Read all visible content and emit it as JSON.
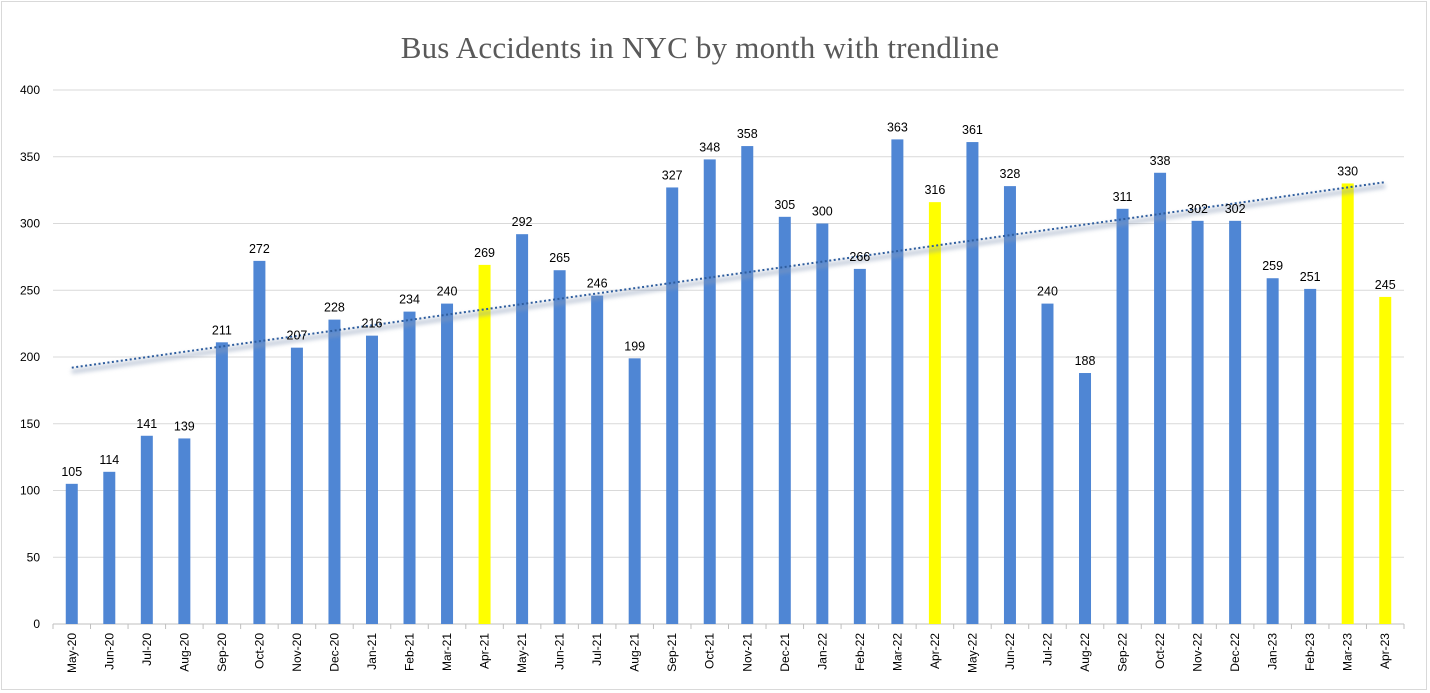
{
  "chart_data": {
    "type": "bar",
    "title": "Bus Accidents in NYC by month with trendline",
    "xlabel": "",
    "ylabel": "",
    "ylim": [
      0,
      400
    ],
    "yticks": [
      0,
      50,
      100,
      150,
      200,
      250,
      300,
      350,
      400
    ],
    "grid": true,
    "legend": "none",
    "categories": [
      "May-20",
      "Jun-20",
      "Jul-20",
      "Aug-20",
      "Sep-20",
      "Oct-20",
      "Nov-20",
      "Dec-20",
      "Jan-21",
      "Feb-21",
      "Mar-21",
      "Apr-21",
      "May-21",
      "Jun-21",
      "Jul-21",
      "Aug-21",
      "Sep-21",
      "Oct-21",
      "Nov-21",
      "Dec-21",
      "Jan-22",
      "Feb-22",
      "Mar-22",
      "Apr-22",
      "May-22",
      "Jun-22",
      "Jul-22",
      "Aug-22",
      "Sep-22",
      "Oct-22",
      "Nov-22",
      "Dec-22",
      "Jan-23",
      "Feb-23",
      "Mar-23",
      "Apr-23"
    ],
    "values": [
      105,
      114,
      141,
      139,
      211,
      272,
      207,
      228,
      216,
      234,
      240,
      269,
      292,
      265,
      246,
      199,
      327,
      348,
      358,
      305,
      300,
      266,
      363,
      316,
      361,
      328,
      240,
      188,
      311,
      338,
      302,
      302,
      259,
      251,
      330,
      245
    ],
    "highlighted_categories": [
      "Apr-21",
      "Apr-22",
      "Mar-23",
      "Apr-23"
    ],
    "trendline": {
      "type": "linear",
      "style": "dotted",
      "start_value": 192,
      "end_value": 331
    },
    "colors": {
      "bar": "#4f86d4",
      "highlight": "#ffff00",
      "trendline": "#2e5d9e",
      "grid": "#d9d9d9",
      "axis": "#bfbfbf"
    }
  }
}
